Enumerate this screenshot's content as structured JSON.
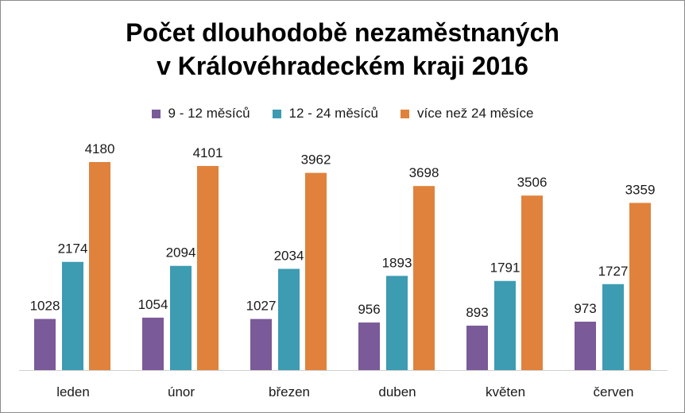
{
  "chart_data": {
    "type": "bar",
    "title": [
      "Počet dlouhodobě nezaměstnaných",
      "v Královéhradeckém kraji  2016"
    ],
    "categories": [
      "leden",
      "únor",
      "březen",
      "duben",
      "květen",
      "červen"
    ],
    "series": [
      {
        "name": "9 - 12 měsíců",
        "color": "#7a5a98",
        "values": [
          1028,
          1054,
          1027,
          956,
          893,
          973
        ]
      },
      {
        "name": "12 - 24 měsíců",
        "color": "#3d9bb2",
        "values": [
          2174,
          2094,
          2034,
          1893,
          1791,
          1727
        ]
      },
      {
        "name": "více než 24 měsíce",
        "color": "#e0823c",
        "values": [
          4180,
          4101,
          3962,
          3698,
          3506,
          3359
        ]
      }
    ],
    "ylim": [
      0,
      4180
    ],
    "grid": false,
    "legend_position": "top"
  }
}
